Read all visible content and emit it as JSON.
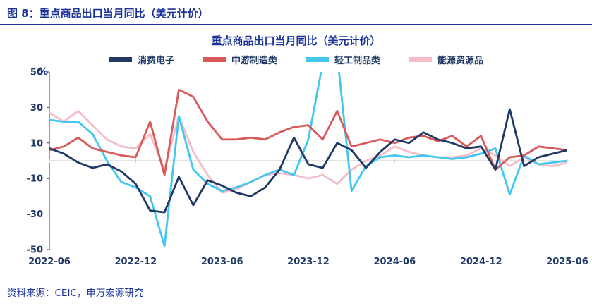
{
  "figure": {
    "caption": "图 8：重点商品出口当月同比（美元计价）",
    "source_note": "资料来源：CEIC，申万宏源研究",
    "accent_color": "#1b3399",
    "axis_text_color": "#1f3864",
    "zero_line_color": "#c9c9c9"
  },
  "chart_data": {
    "type": "line",
    "title": "重点商品出口当月同比（美元计价）",
    "ylabel": "%",
    "ylim": [
      -50,
      50
    ],
    "yticks": [
      50,
      30,
      10,
      -10,
      -30,
      -50
    ],
    "grid": false,
    "zero_line": true,
    "legend_position": "top",
    "xtick_labels": [
      "2022-06",
      "2022-12",
      "2023-06",
      "2023-12",
      "2024-06",
      "2024-12",
      "2025-06"
    ],
    "x": [
      "2022-06",
      "2022-07",
      "2022-08",
      "2022-09",
      "2022-10",
      "2022-11",
      "2022-12",
      "2023-01",
      "2023-02",
      "2023-03",
      "2023-04",
      "2023-05",
      "2023-06",
      "2023-07",
      "2023-08",
      "2023-09",
      "2023-10",
      "2023-11",
      "2023-12",
      "2024-01",
      "2024-02",
      "2024-03",
      "2024-04",
      "2024-05",
      "2024-06",
      "2024-07",
      "2024-08",
      "2024-09",
      "2024-10",
      "2024-11",
      "2024-12",
      "2025-01",
      "2025-02",
      "2025-03",
      "2025-04",
      "2025-05",
      "2025-06"
    ],
    "series": [
      {
        "name": "消费电子",
        "color": "#1f3864",
        "values": [
          7,
          4,
          -1,
          -4,
          -2,
          -6,
          -13,
          -28,
          -29,
          -9,
          -25,
          -11,
          -14,
          -18,
          -20,
          -15,
          -5,
          13,
          -2,
          -4,
          10,
          6,
          -4,
          5,
          12,
          10,
          16,
          12,
          10,
          7,
          8,
          -5,
          29,
          -3,
          2,
          4,
          6
        ]
      },
      {
        "name": "中游制造类",
        "color": "#d95858",
        "values": [
          6,
          8,
          13,
          7,
          5,
          3,
          2,
          22,
          -8,
          40,
          36,
          22,
          12,
          12,
          13,
          12,
          16,
          19,
          20,
          12,
          28,
          8,
          10,
          12,
          10,
          13,
          14,
          11,
          14,
          8,
          14,
          -5,
          2,
          3,
          8,
          7,
          6
        ]
      },
      {
        "name": "轻工制品类",
        "color": "#43c7f0",
        "values": [
          23,
          22,
          22,
          15,
          0,
          -12,
          -15,
          -20,
          -48,
          25,
          -5,
          -13,
          -17,
          -15,
          -12,
          -8,
          -5,
          -8,
          12,
          55,
          60,
          -17,
          -3,
          2,
          3,
          2,
          3,
          2,
          1,
          2,
          4,
          7,
          -19,
          3,
          -2,
          -1,
          0
        ]
      },
      {
        "name": "能源资源品",
        "color": "#f5bdc8",
        "values": [
          27,
          22,
          28,
          20,
          12,
          8,
          7,
          15,
          -5,
          25,
          5,
          -8,
          -18,
          -16,
          -12,
          -8,
          -7,
          -8,
          -10,
          -8,
          -13,
          -5,
          0,
          3,
          8,
          5,
          3,
          2,
          2,
          3,
          7,
          3,
          -3,
          2,
          -2,
          -3,
          -1
        ]
      }
    ]
  }
}
